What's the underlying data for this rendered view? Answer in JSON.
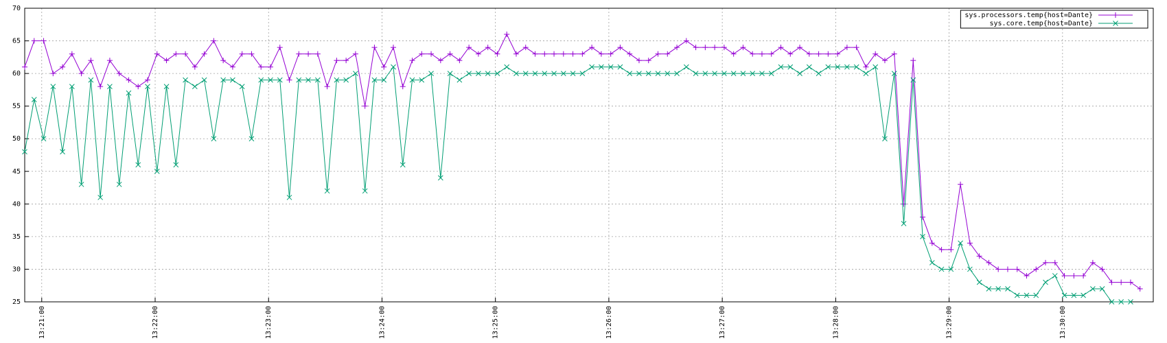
{
  "chart_data": {
    "type": "line",
    "x": [
      "13:20:51",
      "13:20:56",
      "13:21:01",
      "13:21:06",
      "13:21:11",
      "13:21:16",
      "13:21:21",
      "13:21:26",
      "13:21:31",
      "13:21:36",
      "13:21:41",
      "13:21:46",
      "13:21:51",
      "13:21:56",
      "13:22:01",
      "13:22:06",
      "13:22:11",
      "13:22:16",
      "13:22:21",
      "13:22:26",
      "13:22:31",
      "13:22:36",
      "13:22:41",
      "13:22:46",
      "13:22:51",
      "13:22:56",
      "13:23:01",
      "13:23:06",
      "13:23:11",
      "13:23:16",
      "13:23:21",
      "13:23:26",
      "13:23:31",
      "13:23:36",
      "13:23:41",
      "13:23:46",
      "13:23:51",
      "13:23:56",
      "13:24:01",
      "13:24:06",
      "13:24:11",
      "13:24:16",
      "13:24:21",
      "13:24:26",
      "13:24:31",
      "13:24:36",
      "13:24:41",
      "13:24:46",
      "13:24:51",
      "13:24:56",
      "13:25:01",
      "13:25:06",
      "13:25:11",
      "13:25:16",
      "13:25:21",
      "13:25:26",
      "13:25:31",
      "13:25:36",
      "13:25:41",
      "13:25:46",
      "13:25:51",
      "13:25:56",
      "13:26:01",
      "13:26:06",
      "13:26:11",
      "13:26:16",
      "13:26:21",
      "13:26:26",
      "13:26:31",
      "13:26:36",
      "13:26:41",
      "13:26:46",
      "13:26:51",
      "13:26:56",
      "13:27:01",
      "13:27:06",
      "13:27:11",
      "13:27:16",
      "13:27:21",
      "13:27:26",
      "13:27:31",
      "13:27:36",
      "13:27:41",
      "13:27:46",
      "13:27:51",
      "13:27:56",
      "13:28:01",
      "13:28:06",
      "13:28:11",
      "13:28:16",
      "13:28:21",
      "13:28:26",
      "13:28:31",
      "13:28:36",
      "13:28:41",
      "13:28:46",
      "13:28:51",
      "13:28:56",
      "13:29:01",
      "13:29:06",
      "13:29:11",
      "13:29:16",
      "13:29:21",
      "13:29:26",
      "13:29:31",
      "13:29:36",
      "13:29:41",
      "13:29:46",
      "13:29:51",
      "13:29:56",
      "13:30:01",
      "13:30:06",
      "13:30:11",
      "13:30:16",
      "13:30:21",
      "13:30:26",
      "13:30:31",
      "13:30:36",
      "13:30:41"
    ],
    "series": [
      {
        "name": "sys.processors.temp{host=Dante}",
        "color": "#9400d3",
        "marker": "plus",
        "values": [
          61,
          65,
          65,
          60,
          61,
          63,
          60,
          62,
          58,
          62,
          60,
          59,
          58,
          59,
          63,
          62,
          63,
          63,
          61,
          63,
          65,
          62,
          61,
          63,
          63,
          61,
          61,
          64,
          59,
          63,
          63,
          63,
          58,
          62,
          62,
          63,
          55,
          64,
          61,
          64,
          58,
          62,
          63,
          63,
          62,
          63,
          62,
          64,
          63,
          64,
          63,
          66,
          63,
          64,
          63,
          63,
          63,
          63,
          63,
          63,
          64,
          63,
          63,
          64,
          63,
          62,
          62,
          63,
          63,
          64,
          65,
          64,
          64,
          64,
          64,
          63,
          64,
          63,
          63,
          63,
          64,
          63,
          64,
          63,
          63,
          63,
          63,
          64,
          64,
          61,
          63,
          62,
          63,
          40,
          62,
          38,
          34,
          33,
          33,
          43,
          34,
          32,
          31,
          30,
          30,
          30,
          29,
          30,
          31,
          31,
          29,
          29,
          29,
          31,
          30,
          28,
          28,
          28,
          27
        ]
      },
      {
        "name": "sys.core.temp{host=Dante}",
        "color": "#009e73",
        "marker": "cross",
        "values": [
          48,
          56,
          50,
          58,
          48,
          58,
          43,
          59,
          41,
          58,
          43,
          57,
          46,
          58,
          45,
          58,
          46,
          59,
          58,
          59,
          50,
          59,
          59,
          58,
          50,
          59,
          59,
          59,
          41,
          59,
          59,
          59,
          42,
          59,
          59,
          60,
          42,
          59,
          59,
          61,
          46,
          59,
          59,
          60,
          44,
          60,
          59,
          60,
          60,
          60,
          60,
          61,
          60,
          60,
          60,
          60,
          60,
          60,
          60,
          60,
          61,
          61,
          61,
          61,
          60,
          60,
          60,
          60,
          60,
          60,
          61,
          60,
          60,
          60,
          60,
          60,
          60,
          60,
          60,
          60,
          61,
          61,
          60,
          61,
          60,
          61,
          61,
          61,
          61,
          60,
          61,
          50,
          60,
          37,
          59,
          35,
          31,
          30,
          30,
          34,
          30,
          28,
          27,
          27,
          27,
          26,
          26,
          26,
          28,
          29,
          26,
          26,
          26,
          27,
          27,
          25,
          25,
          25,
          null
        ]
      }
    ],
    "xlim": [
      "13:20:51",
      "13:30:48"
    ],
    "xticks": [
      "13:21:00",
      "13:22:00",
      "13:23:00",
      "13:24:00",
      "13:25:00",
      "13:26:00",
      "13:27:00",
      "13:28:00",
      "13:29:00",
      "13:30:00"
    ],
    "ylim": [
      25,
      70
    ],
    "yticks": [
      25,
      30,
      35,
      40,
      45,
      50,
      55,
      60,
      65,
      70
    ],
    "grid": true,
    "legend": "top-right"
  }
}
